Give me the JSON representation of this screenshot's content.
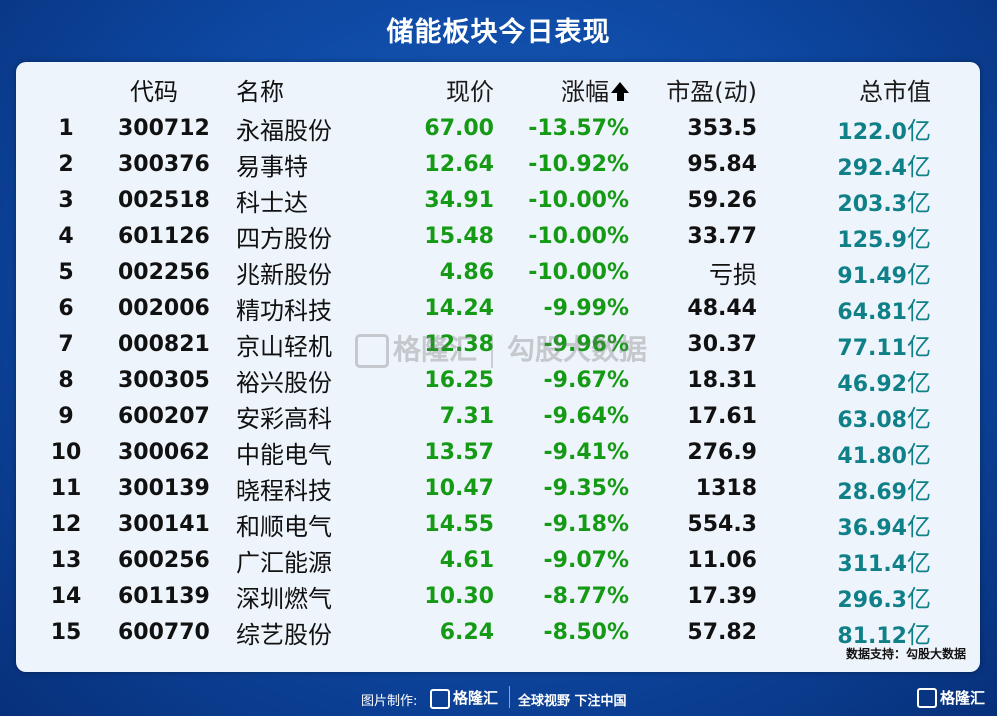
{
  "title": "储能板块今日表现",
  "headers": {
    "code": "代码",
    "name": "名称",
    "price": "现价",
    "change": "涨幅",
    "pe": "市盈(动)",
    "cap": "总市值"
  },
  "rows": [
    {
      "idx": "1",
      "code": "300712",
      "name": "永福股份",
      "price": "67.00",
      "change": "-13.57%",
      "pe": "353.5",
      "cap": "122.0",
      "unit": "亿"
    },
    {
      "idx": "2",
      "code": "300376",
      "name": "易事特",
      "price": "12.64",
      "change": "-10.92%",
      "pe": "95.84",
      "cap": "292.4",
      "unit": "亿"
    },
    {
      "idx": "3",
      "code": "002518",
      "name": "科士达",
      "price": "34.91",
      "change": "-10.00%",
      "pe": "59.26",
      "cap": "203.3",
      "unit": "亿"
    },
    {
      "idx": "4",
      "code": "601126",
      "name": "四方股份",
      "price": "15.48",
      "change": "-10.00%",
      "pe": "33.77",
      "cap": "125.9",
      "unit": "亿"
    },
    {
      "idx": "5",
      "code": "002256",
      "name": "兆新股份",
      "price": "4.86",
      "change": "-10.00%",
      "pe": "亏损",
      "cap": "91.49",
      "unit": "亿"
    },
    {
      "idx": "6",
      "code": "002006",
      "name": "精功科技",
      "price": "14.24",
      "change": "-9.99%",
      "pe": "48.44",
      "cap": "64.81",
      "unit": "亿"
    },
    {
      "idx": "7",
      "code": "000821",
      "name": "京山轻机",
      "price": "12.38",
      "change": "-9.96%",
      "pe": "30.37",
      "cap": "77.11",
      "unit": "亿"
    },
    {
      "idx": "8",
      "code": "300305",
      "name": "裕兴股份",
      "price": "16.25",
      "change": "-9.67%",
      "pe": "18.31",
      "cap": "46.92",
      "unit": "亿"
    },
    {
      "idx": "9",
      "code": "600207",
      "name": "安彩高科",
      "price": "7.31",
      "change": "-9.64%",
      "pe": "17.61",
      "cap": "63.08",
      "unit": "亿"
    },
    {
      "idx": "10",
      "code": "300062",
      "name": "中能电气",
      "price": "13.57",
      "change": "-9.41%",
      "pe": "276.9",
      "cap": "41.80",
      "unit": "亿"
    },
    {
      "idx": "11",
      "code": "300139",
      "name": "晓程科技",
      "price": "10.47",
      "change": "-9.35%",
      "pe": "1318",
      "cap": "28.69",
      "unit": "亿"
    },
    {
      "idx": "12",
      "code": "300141",
      "name": "和顺电气",
      "price": "14.55",
      "change": "-9.18%",
      "pe": "554.3",
      "cap": "36.94",
      "unit": "亿"
    },
    {
      "idx": "13",
      "code": "600256",
      "name": "广汇能源",
      "price": "4.61",
      "change": "-9.07%",
      "pe": "11.06",
      "cap": "311.4",
      "unit": "亿"
    },
    {
      "idx": "14",
      "code": "601139",
      "name": "深圳燃气",
      "price": "10.30",
      "change": "-8.77%",
      "pe": "17.39",
      "cap": "296.3",
      "unit": "亿"
    },
    {
      "idx": "15",
      "code": "600770",
      "name": "综艺股份",
      "price": "6.24",
      "change": "-8.50%",
      "pe": "57.82",
      "cap": "81.12",
      "unit": "亿"
    }
  ],
  "source": "数据支持：勾股大数据",
  "watermark": {
    "brand": "格隆汇",
    "product": "勾股大数据"
  },
  "footer": {
    "made": "图片制作:",
    "brand": "格隆汇",
    "slogan": "全球视野 下注中国"
  },
  "corner_brand": "格隆汇",
  "colors": {
    "background": "#0d47a1",
    "panel": "#eef4fb",
    "change": "#159a15",
    "cap": "#0f7f88"
  }
}
